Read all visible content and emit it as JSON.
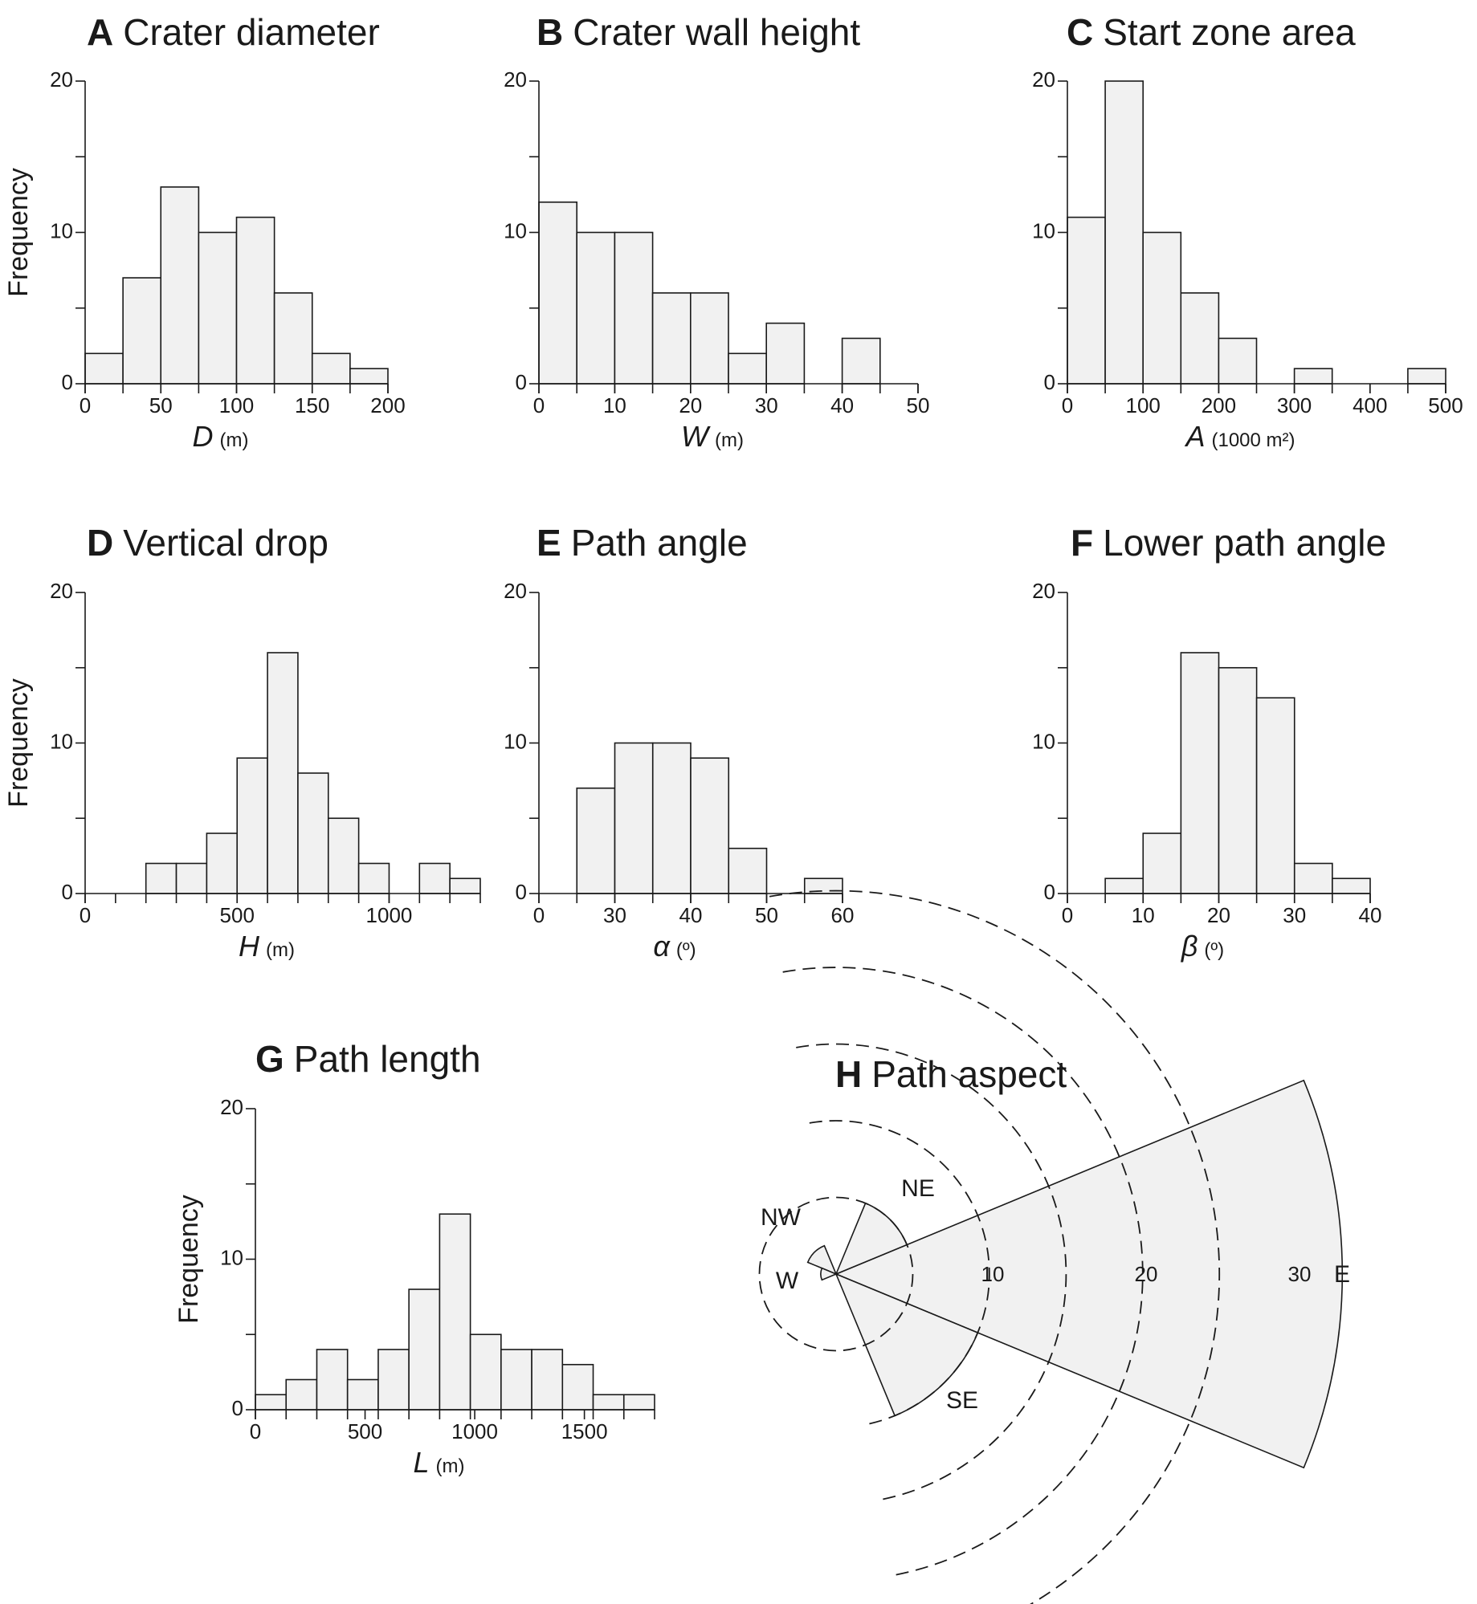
{
  "chart_data": [
    {
      "id": "A",
      "type": "bar",
      "letter": "A",
      "title": "Crater diameter",
      "ylabel": "Frequency",
      "xsymbol": "D",
      "xunit": "(m)",
      "bin_edges": [
        0,
        25,
        50,
        75,
        100,
        125,
        150,
        175,
        200
      ],
      "values": [
        2,
        7,
        13,
        10,
        11,
        6,
        2,
        1
      ],
      "xticks": [
        0,
        50,
        100,
        150,
        200
      ],
      "xlim": [
        0,
        200
      ],
      "ylim": [
        0,
        20
      ],
      "yticks": [
        0,
        10,
        20
      ],
      "yminor": [
        5,
        15
      ]
    },
    {
      "id": "B",
      "type": "bar",
      "letter": "B",
      "title": "Crater wall height",
      "ylabel": "",
      "xsymbol": "W",
      "xunit": "(m)",
      "bin_edges": [
        0,
        5,
        10,
        15,
        20,
        25,
        30,
        35,
        40,
        45,
        50
      ],
      "values": [
        12,
        10,
        10,
        6,
        6,
        2,
        4,
        0,
        3,
        0
      ],
      "xticks": [
        0,
        10,
        20,
        30,
        40,
        50
      ],
      "xlim": [
        0,
        50
      ],
      "ylim": [
        0,
        20
      ],
      "yticks": [
        0,
        10,
        20
      ],
      "yminor": [
        5,
        15
      ]
    },
    {
      "id": "C",
      "type": "bar",
      "letter": "C",
      "title": "Start zone area",
      "ylabel": "",
      "xsymbol": "A",
      "xunit": "(1000 m²)",
      "bin_edges": [
        0,
        50,
        100,
        150,
        200,
        250,
        300,
        350,
        400,
        450,
        500
      ],
      "values": [
        11,
        20,
        10,
        6,
        3,
        0,
        1,
        0,
        0,
        1
      ],
      "xticks": [
        0,
        100,
        200,
        300,
        400,
        500
      ],
      "xlim": [
        0,
        500
      ],
      "ylim": [
        0,
        20
      ],
      "yticks": [
        0,
        10,
        20
      ],
      "yminor": [
        5,
        15
      ]
    },
    {
      "id": "D",
      "type": "bar",
      "letter": "D",
      "title": "Vertical drop",
      "ylabel": "Frequency",
      "xsymbol": "H",
      "xunit": "(m)",
      "bin_edges": [
        0,
        100,
        200,
        300,
        400,
        500,
        600,
        700,
        800,
        900,
        1000,
        1100,
        1200,
        1300
      ],
      "values": [
        0,
        0,
        2,
        2,
        4,
        9,
        16,
        8,
        5,
        2,
        0,
        2,
        1
      ],
      "xticks": [
        0,
        500,
        1000
      ],
      "xlim": [
        0,
        1300
      ],
      "ylim": [
        0,
        20
      ],
      "yticks": [
        0,
        10,
        20
      ],
      "yminor": [
        5,
        15
      ]
    },
    {
      "id": "E",
      "type": "bar",
      "letter": "E",
      "title": "Path angle",
      "ylabel": "",
      "xsymbol": "α",
      "xunit": "(º)",
      "bin_edges": [
        20,
        25,
        30,
        35,
        40,
        45,
        50,
        55,
        60
      ],
      "values": [
        0,
        7,
        10,
        10,
        9,
        3,
        0,
        1
      ],
      "xticks": [
        0,
        30,
        40,
        50,
        60
      ],
      "xaxis_break": true,
      "xlim": [
        20,
        60
      ],
      "ylim": [
        0,
        20
      ],
      "yticks": [
        0,
        10,
        20
      ],
      "yminor": [
        5,
        15
      ]
    },
    {
      "id": "F",
      "type": "bar",
      "letter": "F",
      "title": "Lower path angle",
      "ylabel": "",
      "xsymbol": "β",
      "xunit": "(º)",
      "bin_edges": [
        0,
        5,
        10,
        15,
        20,
        25,
        30,
        35,
        40
      ],
      "values": [
        0,
        1,
        4,
        16,
        15,
        13,
        2,
        1
      ],
      "xticks": [
        0,
        10,
        20,
        30,
        40
      ],
      "xlim": [
        0,
        40
      ],
      "ylim": [
        0,
        20
      ],
      "yticks": [
        0,
        10,
        20
      ],
      "yminor": [
        5,
        15
      ]
    },
    {
      "id": "G",
      "type": "bar",
      "letter": "G",
      "title": "Path length",
      "ylabel": "Frequency",
      "xsymbol": "L",
      "xunit": "(m)",
      "bin_edges": [
        0,
        140,
        280,
        420,
        560,
        700,
        840,
        980,
        1120,
        1260,
        1400,
        1540,
        1680,
        1820
      ],
      "values": [
        1,
        2,
        4,
        2,
        4,
        8,
        13,
        5,
        4,
        4,
        3,
        1,
        1
      ],
      "xticks": [
        0,
        500,
        1000,
        1500
      ],
      "xlim": [
        0,
        1820
      ],
      "ylim": [
        0,
        20
      ],
      "yticks": [
        0,
        10,
        20
      ],
      "yminor": [
        5,
        15
      ]
    },
    {
      "id": "H",
      "type": "rose",
      "letter": "H",
      "title": "Path aspect",
      "directions": [
        "E",
        "NE",
        "SE",
        "NW",
        "W"
      ],
      "direction_deg": [
        90,
        45,
        135,
        315,
        270
      ],
      "values": [
        33,
        5,
        10,
        2,
        1
      ],
      "ring_values": [
        10,
        20,
        30
      ],
      "ring_labels": [
        "10",
        "20",
        "30"
      ],
      "rings_drawn": [
        5,
        10,
        15,
        20,
        25
      ]
    }
  ]
}
